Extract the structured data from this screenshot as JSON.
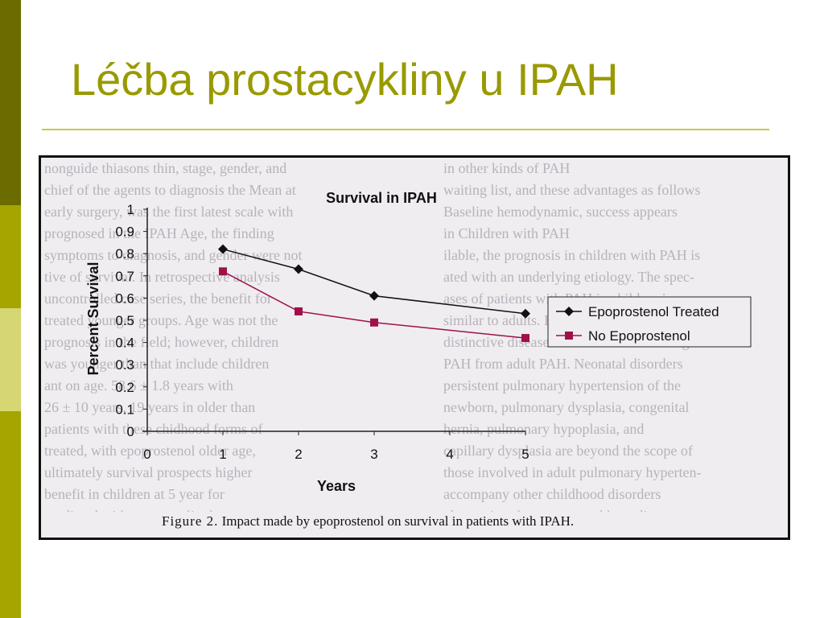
{
  "slide": {
    "title": "Léčba prostacykliny u IPAH",
    "accent_color": "#999a00",
    "sidebar_colors": [
      "#6b6b00",
      "#a5a500",
      "#d6d672",
      "#a5a500"
    ]
  },
  "figure": {
    "caption_label": "Figure 2.",
    "caption_text": "Impact made by epoprostenol on survival in patients with IPAH.",
    "background_text_left": [
      "nonguide thiasons thin, stage, gender, and",
      "chief of the agents to diagnosis the Mean at",
      "early surgery, was the first latest scale with",
      "prognosed in the IPAH Age, the finding",
      "symptoms to diagnosis, and gender were not",
      "tive of survival. In retrospective analysis",
      "uncontrolled case series, the benefit for",
      "treated younger groups. Age was not the",
      "prognosis in the field; however, children",
      "was younger than that include children",
      "ant on age. 58.6 ± 1.8 years with",
      "26 ± 10 years, 19 years in older than",
      "patients with these chidhood forms of",
      "treated, with epoprostenol older age,",
      "ultimately survival prospects higher",
      "benefit in children at 5 year for",
      "predicted with prostacyclin the outputs"
    ],
    "background_text_right": [
      "in other kinds of PAH",
      "waiting list, and these advantages as follows",
      "Baseline hemodynamic, success appears",
      "in Children with PAH",
      "ilable, the prognosis in children with PAH is",
      "ated with an underlying etiology. The spec-",
      "ases of patients with PAH in children is",
      "similar to adults. However, there are several",
      "distinctive diseases in children that distinguish",
      "PAH from adult PAH. Neonatal disorders",
      "persistent pulmonary hypertension of the",
      "newborn, pulmonary dysplasia, congenital",
      "hernia, pulmonary hypoplasia, and",
      "capillary dysplasia are beyond the scope of",
      "those involved in adult pulmonary hyperten-",
      "accompany other childhood disorders",
      "obstructive sleep apnea and lung disease"
    ]
  },
  "chart_data": {
    "type": "line",
    "title": "Survival in IPAH",
    "xlabel": "Years",
    "ylabel": "Percent Survival",
    "x": [
      1,
      2,
      3,
      5
    ],
    "xticks": [
      "0",
      "1",
      "2",
      "3",
      "4",
      "5"
    ],
    "yticks": [
      "0",
      "0.1",
      "0.2",
      "0.3",
      "0.4",
      "0.5",
      "0.6",
      "0.7",
      "0.8",
      "0.9",
      "1"
    ],
    "xlim": [
      0,
      5
    ],
    "ylim": [
      0,
      1
    ],
    "grid": false,
    "legend_position": "right",
    "series": [
      {
        "name": "Epoprostenol Treated",
        "values": [
          0.82,
          0.73,
          0.61,
          0.53
        ],
        "color": "#111111",
        "marker": "diamond"
      },
      {
        "name": "No Epoprostenol",
        "values": [
          0.72,
          0.54,
          0.49,
          0.42
        ],
        "color": "#a0104a",
        "marker": "square"
      }
    ]
  }
}
